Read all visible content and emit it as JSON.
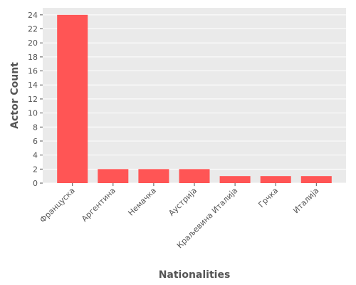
{
  "chart_data": {
    "type": "bar",
    "title": "",
    "xlabel": "Nationalities",
    "ylabel": "Actor Count",
    "categories": [
      "Француска",
      "Аргентина",
      "Немачка",
      "Аустрија",
      "Краљевина Италија",
      "Грчка",
      "Италија"
    ],
    "values": [
      24,
      2,
      2,
      2,
      1,
      1,
      1
    ],
    "ylim": [
      0,
      25
    ],
    "yticks": [
      0,
      2,
      4,
      6,
      8,
      10,
      12,
      14,
      16,
      18,
      20,
      22,
      24
    ],
    "grid": true,
    "legend": "none",
    "colors": {
      "bar": "#FF5555",
      "plot_background": "#EAEAEA",
      "grid": "#FFFFFF",
      "text": "#555555"
    }
  }
}
